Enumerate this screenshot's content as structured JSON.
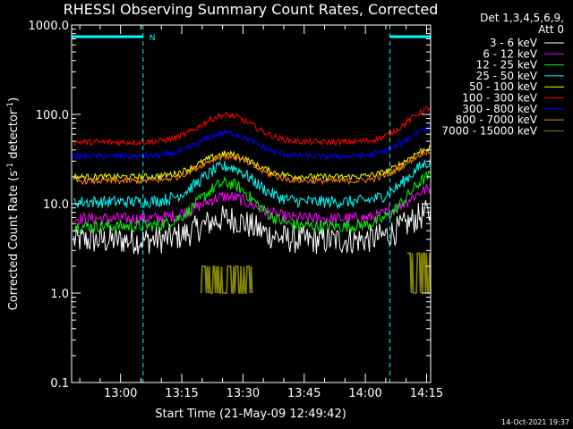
{
  "chart_data": {
    "type": "line",
    "title": "RHESSI Observing Summary Count Rates, Corrected",
    "xlabel": "Start Time (21-May-09 12:49:42)",
    "ylabel_main": "Corrected Count Rate (s",
    "ylabel_sup1": "-1",
    "ylabel_mid": " detector",
    "ylabel_sup2": "-1",
    "ylabel_end": ")",
    "y_scale": "log",
    "ylim": [
      0.1,
      1000
    ],
    "xlim_minutes": [
      -2,
      86
    ],
    "x_ticks": [
      {
        "t": 10,
        "label": "13:00"
      },
      {
        "t": 25,
        "label": "13:15"
      },
      {
        "t": 40,
        "label": "13:30"
      },
      {
        "t": 55,
        "label": "13:45"
      },
      {
        "t": 70,
        "label": "14:00"
      },
      {
        "t": 85,
        "label": "14:15"
      }
    ],
    "y_ticks": [
      {
        "v": 1000,
        "label": "1000.0"
      },
      {
        "v": 100,
        "label": "100.0"
      },
      {
        "v": 10,
        "label": "10.0"
      },
      {
        "v": 1,
        "label": "1.0"
      },
      {
        "v": 0.1,
        "label": "0.1"
      }
    ],
    "x_time_labels": [
      "13:00",
      "13:15",
      "13:30",
      "13:45",
      "14:00",
      "14:15"
    ],
    "legend_header_1": "Det 1,3,4,5,6,9,",
    "legend_header_2": "Att 0",
    "legend_placement": "right",
    "night_marker_label": "N",
    "night_bars_minutes": [
      [
        -2,
        15.5
      ],
      [
        76,
        94.5
      ]
    ],
    "night_boundaries_minutes": [
      -2,
      15.5,
      76,
      94.5
    ],
    "series": [
      {
        "name": "3 - 6 keV",
        "color": "#ffffff",
        "base": 3.9,
        "peaks": [
          6.8,
          8.0
        ]
      },
      {
        "name": "6 - 12 keV",
        "color": "#ff00ff",
        "base": 6.8,
        "peaks": [
          12,
          15
        ]
      },
      {
        "name": "12 - 25 keV",
        "color": "#00ff00",
        "base": 5.6,
        "peaks": [
          17,
          21
        ]
      },
      {
        "name": "25 - 50 keV",
        "color": "#00ffff",
        "base": 10.5,
        "peaks": [
          26,
          30
        ]
      },
      {
        "name": "50 - 100 keV",
        "color": "#ffff00",
        "base": 20,
        "peaks": [
          36,
          43
        ]
      },
      {
        "name": "100 - 300 keV",
        "color": "#ff0000",
        "base": 49,
        "peaks": [
          98,
          120
        ]
      },
      {
        "name": "300 - 800 keV",
        "color": "#0000ff",
        "base": 34,
        "peaks": [
          62,
          73
        ]
      },
      {
        "name": "800 - 7000 keV",
        "color": "#ff8800",
        "base": 18,
        "peaks": [
          34,
          40
        ]
      },
      {
        "name": "7000 - 15000 keV",
        "color": "#888800",
        "base": 1.0,
        "peaks": [
          2.0,
          2.8
        ]
      }
    ],
    "bump_centers_minutes": [
      36,
      87
    ],
    "grid": false
  },
  "footer": {
    "timestamp": "14-Oct-2021 19:37"
  }
}
